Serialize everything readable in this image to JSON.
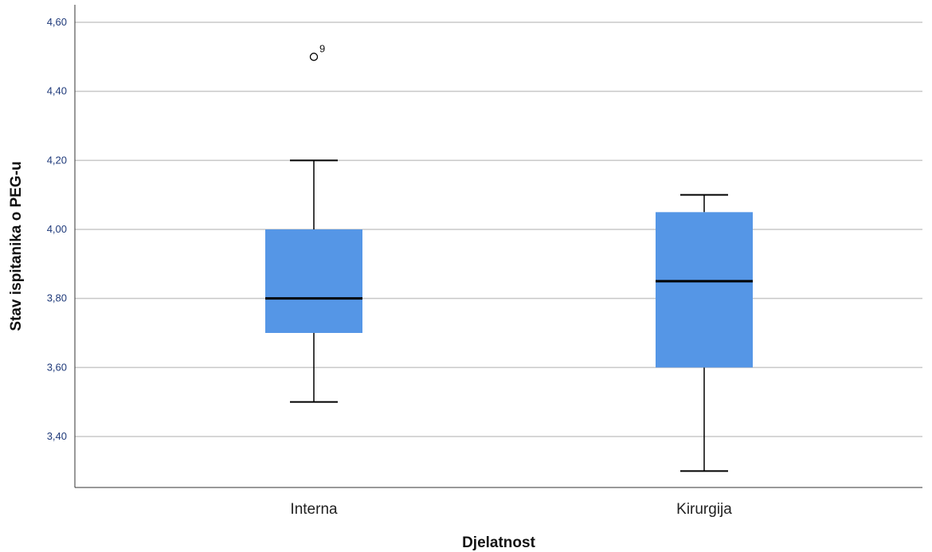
{
  "chart_data": {
    "type": "box",
    "title": "",
    "xlabel": "Djelatnost",
    "ylabel": "Stav ispitanika o PEG-u",
    "ylim": [
      3.25,
      4.63
    ],
    "yticks": [
      3.4,
      3.6,
      3.8,
      4.0,
      4.2,
      4.4,
      4.6
    ],
    "ytick_labels": [
      "3,40",
      "3,60",
      "3,80",
      "4,00",
      "4,20",
      "4,40",
      "4,60"
    ],
    "grid": true,
    "colors": {
      "box_fill": "#5596e6",
      "median_line": "#000000",
      "grid": "#c8c8c8"
    },
    "categories": [
      "Interna",
      "Kirurgija"
    ],
    "boxes": [
      {
        "category": "Interna",
        "whisker_low": 3.5,
        "q1": 3.7,
        "median": 3.8,
        "q3": 4.0,
        "whisker_high": 4.2,
        "outliers": [
          {
            "value": 4.5,
            "label": "9"
          }
        ]
      },
      {
        "category": "Kirurgija",
        "whisker_low": 3.3,
        "q1": 3.6,
        "median": 3.85,
        "q3": 4.05,
        "whisker_high": 4.1,
        "outliers": []
      }
    ]
  }
}
